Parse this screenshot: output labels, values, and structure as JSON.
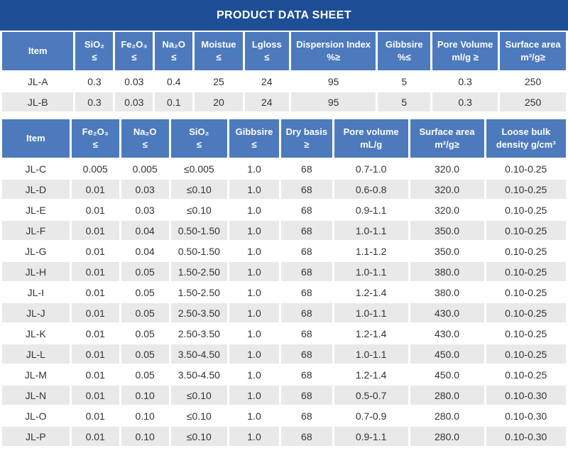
{
  "title": "PRODUCT DATA SHEET",
  "colors": {
    "title_bar": "#1e4e96",
    "header_cell": "#4d7abd",
    "row_alt": "#e9e9e9",
    "cell_text": "#333333",
    "header_text": "#ffffff"
  },
  "table1": {
    "headers": [
      "Item",
      "SiO₂\n≤",
      "Fe₂O₃\n≤",
      "Na₂O\n≤",
      "Moistue\n≤",
      "Lgloss\n≤",
      "Dispersion Index\n%≥",
      "Gibbsire\n%≤",
      "Pore Volume\nml/g ≥",
      "Surface area\nm²/g≥"
    ],
    "rows": [
      [
        "JL-A",
        "0.3",
        "0.03",
        "0.4",
        "25",
        "24",
        "95",
        "5",
        "0.3",
        "250"
      ],
      [
        "JL-B",
        "0.3",
        "0.03",
        "0.1",
        "20",
        "24",
        "95",
        "5",
        "0.3",
        "250"
      ]
    ]
  },
  "table2": {
    "headers": [
      "Item",
      "Fe₂O₃\n≤",
      "Na₂O\n≤",
      "SiO₂\n≤",
      "Gibbsire\n≤",
      "Dry basis\n≥",
      "Pore volume\nmL/g",
      "Surface area\nm²/g≥",
      "Loose bulk\ndensity g/cm³"
    ],
    "rows": [
      [
        "JL-C",
        "0.005",
        "0.005",
        "≤0.005",
        "1.0",
        "68",
        "0.7-1.0",
        "320.0",
        "0.10-0.25"
      ],
      [
        "JL-D",
        "0.01",
        "0.03",
        "≤0.10",
        "1.0",
        "68",
        "0.6-0.8",
        "320.0",
        "0.10-0.25"
      ],
      [
        "JL-E",
        "0.01",
        "0.03",
        "≤0.10",
        "1.0",
        "68",
        "0.9-1.1",
        "320.0",
        "0.10-0.25"
      ],
      [
        "JL-F",
        "0.01",
        "0.04",
        "0.50-1.50",
        "1.0",
        "68",
        "1.0-1.1",
        "350.0",
        "0.10-0.25"
      ],
      [
        "JL-G",
        "0.01",
        "0.04",
        "0.50-1.50",
        "1.0",
        "68",
        "1.1-1.2",
        "350.0",
        "0.10-0.25"
      ],
      [
        "JL-H",
        "0.01",
        "0.05",
        "1.50-2.50",
        "1.0",
        "68",
        "1.0-1.1",
        "380.0",
        "0.10-0.25"
      ],
      [
        "JL-I",
        "0.01",
        "0.05",
        "1.50-2.50",
        "1.0",
        "68",
        "1.2-1.4",
        "380.0",
        "0.10-0.25"
      ],
      [
        "JL-J",
        "0.01",
        "0.05",
        "2.50-3.50",
        "1.0",
        "68",
        "1.0-1.1",
        "430.0",
        "0.10-0.25"
      ],
      [
        "JL-K",
        "0.01",
        "0.05",
        "2.50-3.50",
        "1.0",
        "68",
        "1.2-1.4",
        "430.0",
        "0.10-0.25"
      ],
      [
        "JL-L",
        "0.01",
        "0.05",
        "3.50-4.50",
        "1.0",
        "68",
        "1.0-1.1",
        "450.0",
        "0.10-0.25"
      ],
      [
        "JL-M",
        "0.01",
        "0.05",
        "3.50-4.50",
        "1.0",
        "68",
        "1.2-1.4",
        "450.0",
        "0.10-0.25"
      ],
      [
        "JL-N",
        "0.01",
        "0.10",
        "≤0.10",
        "1.0",
        "68",
        "0.5-0.7",
        "280.0",
        "0.10-0.30"
      ],
      [
        "JL-O",
        "0.01",
        "0.10",
        "≤0.10",
        "1.0",
        "68",
        "0.7-0.9",
        "280.0",
        "0.10-0.30"
      ],
      [
        "JL-P",
        "0.01",
        "0.10",
        "≤0.10",
        "1.0",
        "68",
        "0.9-1.1",
        "280.0",
        "0.10-0.30"
      ]
    ]
  }
}
